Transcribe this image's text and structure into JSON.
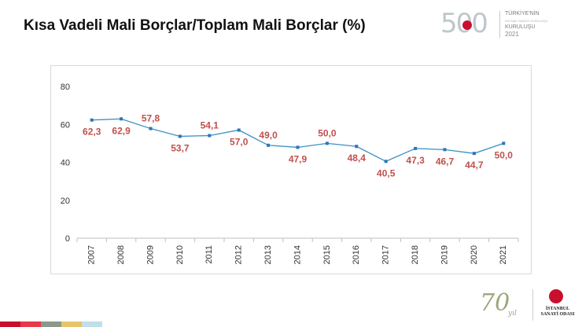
{
  "slide": {
    "title": "Kısa Vadeli Mali Borçlar/Toplam Mali Borçlar (%)"
  },
  "logo_500": {
    "number": "500",
    "line1": "TÜRKİYE'NİN",
    "line2": "KAYNAK SANAYİ KURULUŞU",
    "line3": "KURULUŞU",
    "year": "2021"
  },
  "logo_70": {
    "number": "70",
    "suffix": "yıl"
  },
  "iso_logo": {
    "line1": "İSTANBUL",
    "line2": "SANAYİ ODASI"
  },
  "colors": {
    "line": "#3a8fc2",
    "marker": "#2e75b6",
    "data_label": "#c0504d",
    "bottom_bar": [
      "#c8102e",
      "#e8394a",
      "#8a9a8a",
      "#e6c56a",
      "#bfe0ea"
    ]
  },
  "chart_data": {
    "type": "line",
    "title": "Kısa Vadeli Mali Borçlar/Toplam Mali Borçlar (%)",
    "xlabel": "",
    "ylabel": "",
    "categories": [
      "2007",
      "2008",
      "2009",
      "2010",
      "2011",
      "2012",
      "2013",
      "2014",
      "2015",
      "2016",
      "2017",
      "2018",
      "2019",
      "2020",
      "2021"
    ],
    "series": [
      {
        "values": [
          62.3,
          62.9,
          57.8,
          53.7,
          54.1,
          57.0,
          49.0,
          47.9,
          50.0,
          48.4,
          40.5,
          47.3,
          46.7,
          44.7,
          50.0
        ],
        "labels": [
          "62,3",
          "62,9",
          "57,8",
          "53,7",
          "54,1",
          "57,0",
          "49,0",
          "47,9",
          "50,0",
          "48,4",
          "40,5",
          "47,3",
          "46,7",
          "44,7",
          "50,0"
        ]
      }
    ],
    "ylim": [
      0,
      80
    ],
    "yticks": [
      "0",
      "20",
      "40",
      "60",
      "80"
    ],
    "ytick_values": [
      0,
      20,
      40,
      60,
      80
    ],
    "label_positions": [
      "below",
      "below",
      "above",
      "below",
      "above",
      "below",
      "above",
      "below",
      "above",
      "below",
      "below",
      "below",
      "below",
      "below",
      "below"
    ],
    "grid": false,
    "legend": "none"
  }
}
